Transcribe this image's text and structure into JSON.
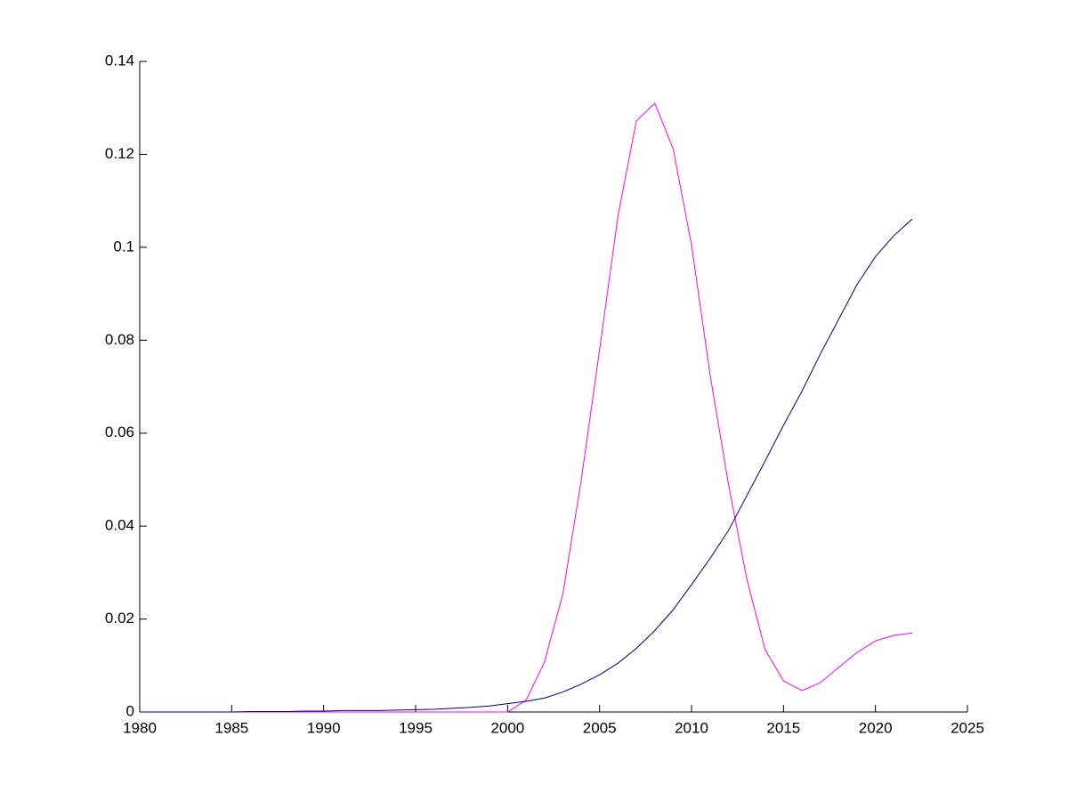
{
  "chart_data": {
    "type": "line",
    "x": [
      1980,
      1981,
      1982,
      1983,
      1984,
      1985,
      1986,
      1987,
      1988,
      1989,
      1990,
      1991,
      1992,
      1993,
      1994,
      1995,
      1996,
      1997,
      1998,
      1999,
      2000,
      2001,
      2002,
      2003,
      2004,
      2005,
      2006,
      2007,
      2008,
      2009,
      2010,
      2011,
      2012,
      2013,
      2014,
      2015,
      2016,
      2017,
      2018,
      2019,
      2020,
      2021,
      2022
    ],
    "series": [
      {
        "color": "#ff00ff",
        "values": [
          0,
          0,
          0,
          0,
          0,
          0,
          0,
          0,
          0,
          0,
          0,
          0,
          0,
          0,
          0,
          0,
          0,
          0,
          0,
          0,
          0,
          0.0025,
          0.0107,
          0.0253,
          0.0498,
          0.0779,
          0.1067,
          0.1272,
          0.131,
          0.1212,
          0.1005,
          0.0728,
          0.0492,
          0.0287,
          0.0134,
          0.0067,
          0.0046,
          0.0063,
          0.0096,
          0.0128,
          0.0153,
          0.0165,
          0.017
        ]
      },
      {
        "color": "#00007f",
        "values": [
          0,
          0,
          0,
          0,
          0,
          0,
          0.0001,
          0.0001,
          0.0001,
          0.0002,
          0.0002,
          0.0003,
          0.0003,
          0.0003,
          0.0004,
          0.0005,
          0.0006,
          0.0008,
          0.001,
          0.0013,
          0.0018,
          0.0023,
          0.003,
          0.0043,
          0.006,
          0.008,
          0.0105,
          0.0137,
          0.0175,
          0.022,
          0.0274,
          0.033,
          0.039,
          0.0465,
          0.054,
          0.0617,
          0.069,
          0.077,
          0.0845,
          0.092,
          0.098,
          0.1025,
          0.1061
        ]
      }
    ],
    "xlim": [
      1980,
      2025
    ],
    "xticks": [
      1980,
      1985,
      1990,
      1995,
      2000,
      2005,
      2010,
      2015,
      2020,
      2025
    ],
    "ylim": [
      0,
      0.14
    ],
    "yticks": [
      0,
      0.02,
      0.04,
      0.06,
      0.08,
      0.1,
      0.12,
      0.14
    ]
  }
}
